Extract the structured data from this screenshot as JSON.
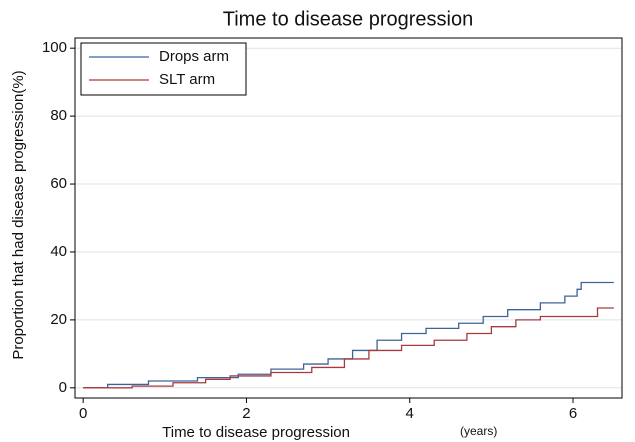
{
  "chart_data": {
    "type": "step-line",
    "title": "Time to disease progression",
    "x_label": "Time to disease progression",
    "x_label_unit": "(years)",
    "y_label": "Proportion that had disease progression(%)",
    "xlim": [
      -0.1,
      6.6
    ],
    "xticks": [
      0,
      2,
      4,
      6
    ],
    "ylim": [
      -3,
      103
    ],
    "yticks": [
      0,
      20,
      40,
      60,
      80,
      100
    ],
    "grid": true,
    "legend": "top-left",
    "series": [
      {
        "name": "Drops arm",
        "color": "#3e6396",
        "x": [
          0,
          0.3,
          0.3,
          0.8,
          0.8,
          1.4,
          1.4,
          1.9,
          1.9,
          2.3,
          2.3,
          2.7,
          2.7,
          3.0,
          3.0,
          3.3,
          3.3,
          3.6,
          3.6,
          3.9,
          3.9,
          4.2,
          4.2,
          4.6,
          4.6,
          4.9,
          4.9,
          5.2,
          5.2,
          5.6,
          5.6,
          5.9,
          5.9,
          6.05,
          6.05,
          6.1,
          6.1,
          6.5
        ],
        "values": [
          0,
          0,
          1,
          1,
          2,
          2,
          3,
          3,
          4,
          4,
          5.5,
          5.5,
          7,
          7,
          8.5,
          8.5,
          11,
          11,
          14,
          14,
          16,
          16,
          17.5,
          17.5,
          19,
          19,
          21,
          21,
          23,
          23,
          25,
          25,
          27,
          27,
          29,
          29,
          31,
          31
        ]
      },
      {
        "name": "SLT arm",
        "color": "#a83a3f",
        "x": [
          0,
          0.6,
          0.6,
          1.1,
          1.1,
          1.5,
          1.5,
          1.8,
          1.8,
          2.3,
          2.3,
          2.8,
          2.8,
          3.2,
          3.2,
          3.5,
          3.5,
          3.9,
          3.9,
          4.3,
          4.3,
          4.7,
          4.7,
          5.0,
          5.0,
          5.3,
          5.3,
          5.6,
          5.6,
          6.3,
          6.3,
          6.5
        ],
        "values": [
          0,
          0,
          0.5,
          0.5,
          1.5,
          1.5,
          2.5,
          2.5,
          3.5,
          3.5,
          4.5,
          4.5,
          6,
          6,
          8.5,
          8.5,
          11,
          11,
          12.5,
          12.5,
          14,
          14,
          16,
          16,
          18,
          18,
          20,
          20,
          21,
          21,
          23.5,
          23.5
        ]
      }
    ]
  }
}
